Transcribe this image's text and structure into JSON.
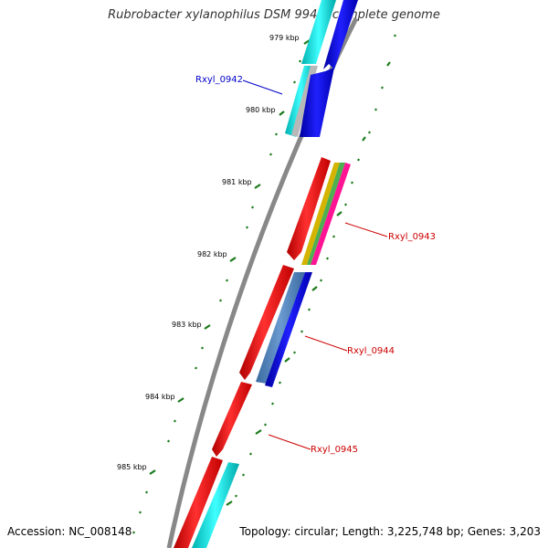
{
  "title": "Rubrobacter xylanophilus DSM 9941, complete genome",
  "footer": {
    "accession": "Accession: NC_008148",
    "summary": "Topology: circular; Length: 3,225,748 bp; Genes: 3,203"
  },
  "colors": {
    "backbone": "#888888",
    "tick": "#1a7a1a",
    "forward_gene": "#ff0000",
    "reverse_gene": "#0000ee",
    "rna_gene": "#00cccc",
    "label_blue": "#0000cc",
    "label_red": "#cc0000"
  },
  "scale_labels": [
    "979 kbp",
    "980 kbp",
    "981 kbp",
    "982 kbp",
    "983 kbp",
    "984 kbp",
    "985 kbp"
  ],
  "genes": [
    {
      "name": "Rxyl_0942",
      "strand": "reverse",
      "color": "blue"
    },
    {
      "name": "Rxyl_0943",
      "strand": "forward",
      "color": "red"
    },
    {
      "name": "Rxyl_0944",
      "strand": "forward",
      "color": "red"
    },
    {
      "name": "Rxyl_0945",
      "strand": "forward",
      "color": "red"
    }
  ]
}
